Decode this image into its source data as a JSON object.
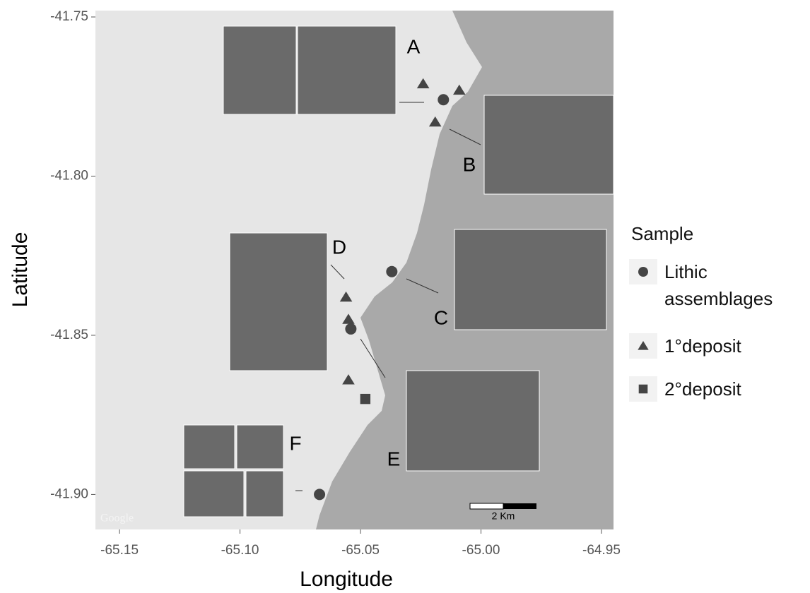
{
  "chart_data": {
    "type": "scatter",
    "x_label": "Longitude",
    "y_label": "Latitude",
    "xlim": [
      -65.16,
      -64.945
    ],
    "ylim": [
      -41.911,
      -41.748
    ],
    "xticks": [
      -65.15,
      {
        "value": -65.1,
        "label": "-65.10"
      },
      -65.05,
      {
        "value": -65.0,
        "label": "-65.00"
      },
      -64.95
    ],
    "yticks": [
      -41.75,
      {
        "value": -41.8,
        "label": "-41.80"
      },
      -41.85,
      {
        "value": -41.9,
        "label": "-41.90"
      }
    ],
    "legend_title": "Sample",
    "legend_position": "right",
    "series": [
      {
        "name": "Lithic assemblages",
        "color": "#454545",
        "marker": "circle",
        "x": [
          -65.0156,
          -65.037,
          -65.054,
          -65.067
        ],
        "y": [
          -41.776,
          -41.83,
          -41.848,
          -41.9
        ]
      },
      {
        "name": "1°deposit",
        "color": "#454545",
        "marker": "triangle",
        "x": [
          -65.024,
          -65.009,
          -65.019,
          -65.056,
          -65.055,
          -65.055
        ],
        "y": [
          -41.771,
          -41.773,
          -41.783,
          -41.838,
          -41.845,
          -41.864
        ]
      },
      {
        "name": "2°deposit",
        "color": "#454545",
        "marker": "square",
        "x": [
          -65.048
        ],
        "y": [
          -41.87
        ]
      }
    ],
    "annotations": [
      "A",
      "B",
      "C",
      "D",
      "E",
      "F"
    ],
    "watermark": "Google",
    "scale_bar": "2 Km"
  }
}
